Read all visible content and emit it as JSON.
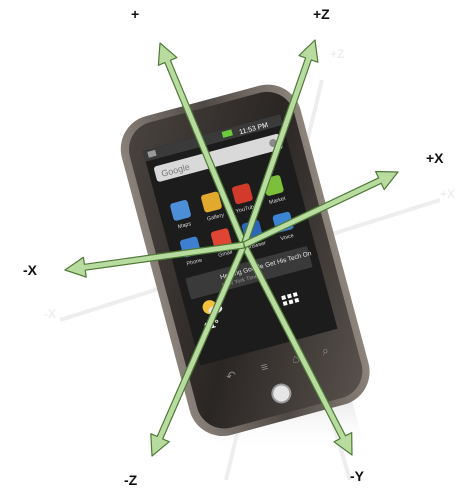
{
  "colors": {
    "axis_fill": "#b8dba0",
    "axis_stroke": "#4f7a35",
    "phone_body": "#2b2b2b",
    "phone_bezel": "#6b6460",
    "screen_bg": "#1c1c1c",
    "reflection": "#d6d6d6"
  },
  "axes": {
    "plus_y_label": "+",
    "plus_z_label": "+Z",
    "plus_x_label": "+X",
    "minus_x_label": "-X",
    "minus_z_label": "-Z",
    "minus_y_label": "-Y"
  },
  "phone": {
    "status_time": "11:53 PM",
    "search_placeholder": "Google",
    "apps": [
      {
        "label": "Maps",
        "icon": "maps-icon",
        "color": "#4d8fd6"
      },
      {
        "label": "Gallery",
        "icon": "gallery-icon",
        "color": "#e2a92f"
      },
      {
        "label": "YouTube",
        "icon": "youtube-icon",
        "color": "#d23a2a"
      },
      {
        "label": "Market",
        "icon": "market-icon",
        "color": "#7cbf3a"
      },
      {
        "label": "Phone",
        "icon": "phone-icon",
        "color": "#3f7fd0"
      },
      {
        "label": "Gmail",
        "icon": "gmail-icon",
        "color": "#e04433"
      },
      {
        "label": "Browser",
        "icon": "browser-icon",
        "color": "#2c66b8"
      },
      {
        "label": "Voice",
        "icon": "voice-icon",
        "color": "#3b85d4"
      }
    ],
    "news_headline": "Helping Google Get His Tech On",
    "news_source": "New York Times",
    "weather_temp": "61°"
  }
}
